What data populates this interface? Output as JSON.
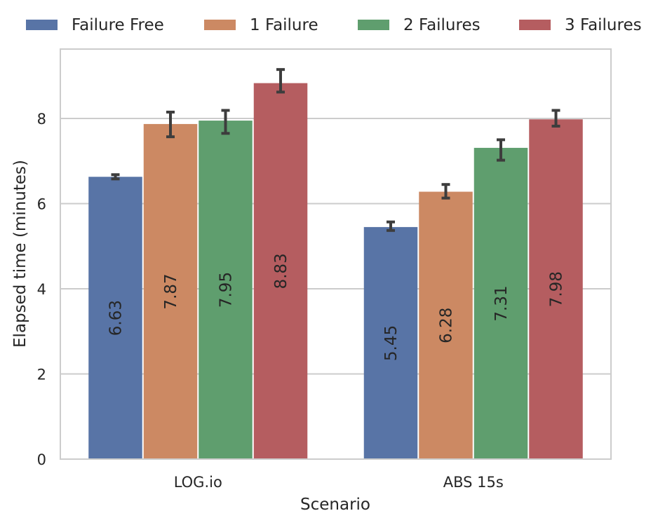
{
  "chart_data": {
    "type": "bar",
    "categories": [
      "LOG.io",
      "ABS 15s"
    ],
    "series": [
      {
        "name": "Failure Free",
        "color": "#5874a6",
        "values": [
          6.63,
          5.45
        ],
        "error_low": [
          6.58,
          5.37
        ],
        "error_high": [
          6.68,
          5.57
        ],
        "labels": [
          "6.63",
          "5.45"
        ]
      },
      {
        "name": "1 Failure",
        "color": "#cc8963",
        "values": [
          7.87,
          6.28
        ],
        "error_low": [
          7.57,
          6.13
        ],
        "error_high": [
          8.15,
          6.45
        ],
        "labels": [
          "7.87",
          "6.28"
        ]
      },
      {
        "name": "2 Failures",
        "color": "#5f9e6e",
        "values": [
          7.95,
          7.31
        ],
        "error_low": [
          7.65,
          7.02
        ],
        "error_high": [
          8.19,
          7.5
        ],
        "labels": [
          "7.95",
          "7.31"
        ]
      },
      {
        "name": "3 Failures",
        "color": "#b55d60",
        "values": [
          8.83,
          7.98
        ],
        "error_low": [
          8.62,
          7.82
        ],
        "error_high": [
          9.15,
          8.19
        ],
        "labels": [
          "8.83",
          "7.98"
        ]
      }
    ],
    "xlabel": "Scenario",
    "ylabel": "Elapsed time (minutes)",
    "ylim": [
      0,
      9.63
    ],
    "yticks": [
      0,
      2,
      4,
      6,
      8
    ],
    "ytick_labels": [
      "0",
      "2",
      "4",
      "6",
      "8"
    ],
    "grid": true,
    "legend_position": "top"
  }
}
